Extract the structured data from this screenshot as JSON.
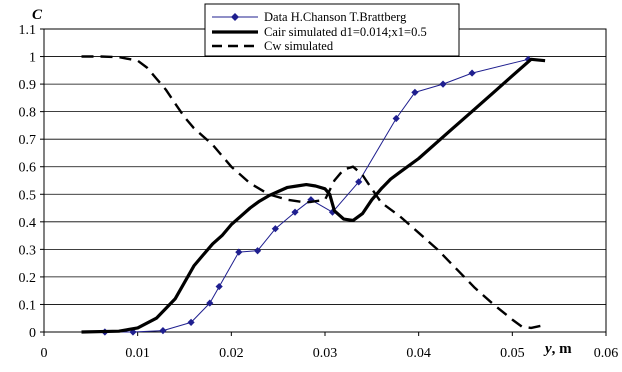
{
  "chart_data": {
    "type": "line",
    "title": "",
    "ylabel": "C",
    "xlabel_var": "y",
    "xlabel_unit": ", m",
    "xlim": [
      0,
      0.06
    ],
    "ylim": [
      0,
      1.1
    ],
    "x_ticks": [
      0,
      0.01,
      0.02,
      0.03,
      0.04,
      0.05,
      0.06
    ],
    "x_tick_labels": [
      "0",
      "0.01",
      "0.02",
      "0.03",
      "0.04",
      "0.05",
      "0.06"
    ],
    "y_ticks": [
      0,
      0.1,
      0.2,
      0.3,
      0.4,
      0.5,
      0.6,
      0.7,
      0.8,
      0.9,
      1.0,
      1.1
    ],
    "y_tick_labels": [
      "0",
      "0.1",
      "0.2",
      "0.3",
      "0.4",
      "0.5",
      "0.6",
      "0.7",
      "0.8",
      "0.9",
      "1",
      "1.1"
    ],
    "grid": "horizontal",
    "legend_position": "top-center",
    "series": [
      {
        "name": "Data H.Chanson T.Brattberg",
        "style": "thin line with diamond markers",
        "color": "#1f1f8f",
        "x": [
          0.0065,
          0.0095,
          0.0127,
          0.0157,
          0.0177,
          0.0187,
          0.0208,
          0.0228,
          0.0247,
          0.0268,
          0.0285,
          0.0308,
          0.0336,
          0.0376,
          0.0396,
          0.0426,
          0.0457,
          0.0517
        ],
        "y": [
          0.0,
          0.0,
          0.005,
          0.035,
          0.105,
          0.165,
          0.29,
          0.295,
          0.375,
          0.435,
          0.48,
          0.435,
          0.545,
          0.775,
          0.87,
          0.9,
          0.94,
          0.99
        ]
      },
      {
        "name": "Cair simulated d1=0.014;x1=0.5",
        "style": "thick solid line",
        "color": "#000000",
        "x": [
          0.004,
          0.008,
          0.01,
          0.012,
          0.014,
          0.015,
          0.016,
          0.017,
          0.018,
          0.019,
          0.02,
          0.021,
          0.022,
          0.023,
          0.024,
          0.025,
          0.026,
          0.027,
          0.028,
          0.029,
          0.03,
          0.0305,
          0.031,
          0.032,
          0.033,
          0.034,
          0.035,
          0.036,
          0.037,
          0.038,
          0.04,
          0.042,
          0.044,
          0.046,
          0.048,
          0.05,
          0.052,
          0.0535
        ],
        "y": [
          0.0,
          0.003,
          0.015,
          0.05,
          0.12,
          0.18,
          0.24,
          0.28,
          0.32,
          0.35,
          0.39,
          0.42,
          0.45,
          0.475,
          0.495,
          0.51,
          0.525,
          0.53,
          0.535,
          0.53,
          0.52,
          0.5,
          0.44,
          0.41,
          0.405,
          0.43,
          0.48,
          0.52,
          0.555,
          0.58,
          0.63,
          0.69,
          0.75,
          0.81,
          0.87,
          0.93,
          0.99,
          0.985
        ]
      },
      {
        "name": "Cw simulated",
        "style": "thick dashed line",
        "color": "#000000",
        "x": [
          0.004,
          0.006,
          0.008,
          0.01,
          0.011,
          0.012,
          0.013,
          0.014,
          0.015,
          0.016,
          0.018,
          0.02,
          0.022,
          0.024,
          0.026,
          0.028,
          0.03,
          0.031,
          0.032,
          0.033,
          0.034,
          0.035,
          0.036,
          0.038,
          0.04,
          0.042,
          0.044,
          0.046,
          0.048,
          0.05,
          0.051,
          0.052,
          0.053
        ],
        "y": [
          1.0,
          1.0,
          0.998,
          0.985,
          0.96,
          0.92,
          0.88,
          0.83,
          0.78,
          0.74,
          0.68,
          0.6,
          0.54,
          0.5,
          0.48,
          0.47,
          0.48,
          0.55,
          0.59,
          0.6,
          0.57,
          0.52,
          0.47,
          0.42,
          0.36,
          0.3,
          0.23,
          0.16,
          0.1,
          0.045,
          0.02,
          0.015,
          0.022
        ]
      }
    ]
  }
}
